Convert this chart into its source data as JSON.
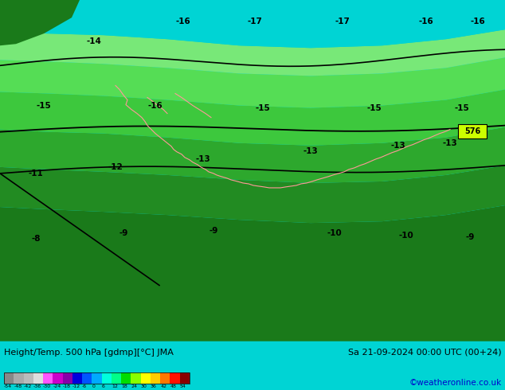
{
  "title_left": "Height/Temp. 500 hPa [gdmp][°C] JMA",
  "title_right": "Sa 21-09-2024 00:00 UTC (00+24)",
  "credit": "©weatheronline.co.uk",
  "bg_color": "#00d4d4",
  "bottom_bar_color": "#00cc00",
  "isoline_box_color": "#ccff00",
  "isoline_box_value": "576",
  "figsize": [
    6.34,
    4.9
  ],
  "dpi": 100,
  "cbar_colors": [
    "#888888",
    "#aaaaaa",
    "#bbbbbb",
    "#dddddd",
    "#ff55ff",
    "#cc00cc",
    "#8800aa",
    "#0000dd",
    "#0055ff",
    "#00aaff",
    "#00ffdd",
    "#00ff88",
    "#00dd00",
    "#88ff00",
    "#ffff00",
    "#ffcc00",
    "#ff7700",
    "#ff1100",
    "#880000"
  ],
  "cbar_labels": [
    "-54",
    "-48",
    "-42",
    "-36",
    "-30",
    "-24",
    "-18",
    "-12",
    "-6",
    "0",
    "6",
    "12",
    "18",
    "24",
    "30",
    "36",
    "42",
    "48",
    "54"
  ]
}
